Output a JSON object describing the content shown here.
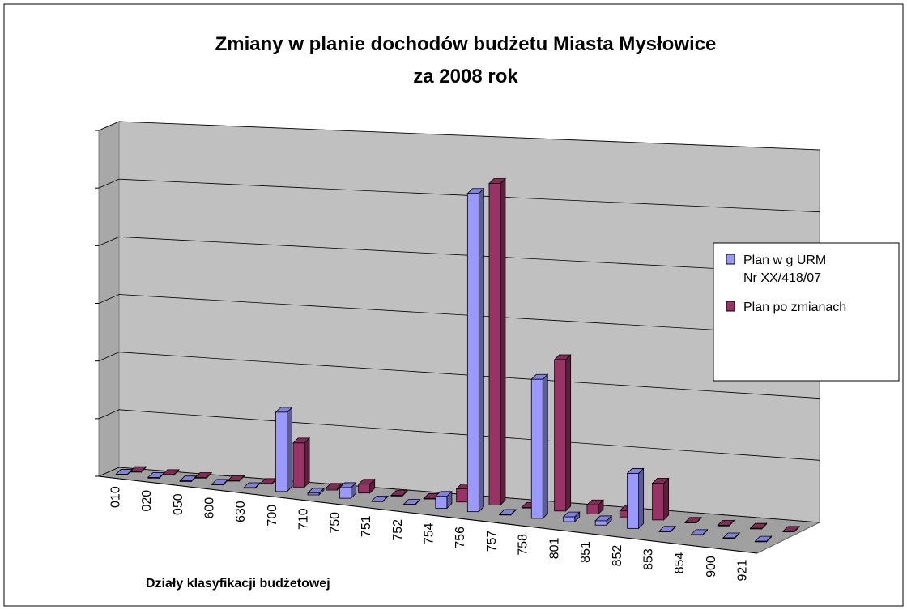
{
  "chart_data": {
    "type": "bar3d",
    "title": [
      "Zmiany w planie dochodów budżetu Miasta Mysłowice",
      "za 2008 rok"
    ],
    "x_label": "Działy klasyfikacji budżetowej",
    "categories": [
      "010",
      "020",
      "050",
      "600",
      "630",
      "700",
      "710",
      "750",
      "751",
      "752",
      "754",
      "756",
      "757",
      "758",
      "801",
      "851",
      "852",
      "853",
      "854",
      "900",
      "921"
    ],
    "series": [
      {
        "name": "Plan w g URM Nr XX/418/07",
        "color": "#9999ff",
        "values": [
          0.01,
          0.01,
          0.01,
          0.01,
          0.01,
          1.35,
          0.03,
          0.18,
          0.01,
          0.01,
          0.2,
          5.3,
          0.01,
          2.3,
          0.08,
          0.07,
          0.9,
          0.01,
          0.01,
          0.01,
          0.01
        ]
      },
      {
        "name": "Plan po zmianach",
        "color": "#993366",
        "values": [
          0.01,
          0.01,
          0.01,
          0.01,
          0.01,
          0.75,
          0.03,
          0.15,
          0.01,
          0.01,
          0.22,
          5.35,
          0.01,
          2.5,
          0.15,
          0.1,
          0.6,
          0.01,
          0.01,
          0.01,
          0.01
        ]
      }
    ],
    "ylim": [
      0,
      6
    ],
    "yticks": [
      0,
      1,
      2,
      3,
      4,
      5,
      6
    ],
    "grid": true,
    "legend": "right"
  }
}
